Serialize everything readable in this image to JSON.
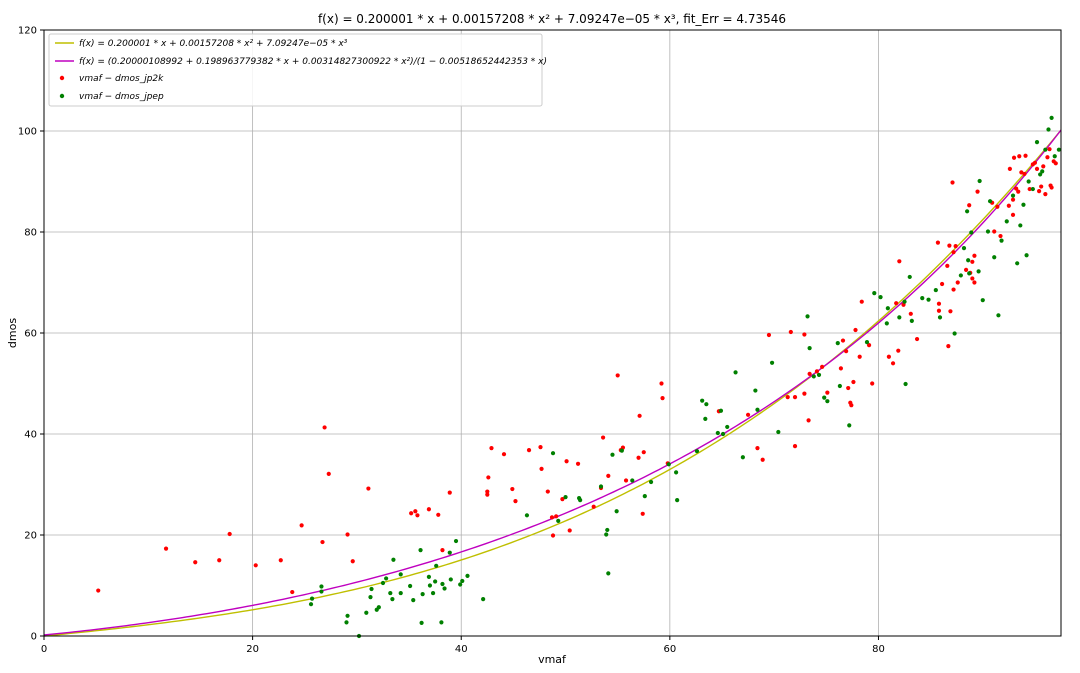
{
  "chart_data": {
    "type": "scatter",
    "title": "f(x) = 0.200001 * x + 0.00157208 * x² + 7.09247e−05 * x³,    fit_Err = 4.73546",
    "xlabel": "vmaf",
    "ylabel": "dmos",
    "xlim": [
      0,
      97.5
    ],
    "ylim": [
      0,
      120
    ],
    "x_ticks": [
      0,
      20,
      40,
      60,
      80
    ],
    "y_ticks": [
      0,
      20,
      40,
      60,
      80,
      100,
      120
    ],
    "grid": true,
    "legend_position": "top-left",
    "fit_lines": [
      {
        "name": "f(x) = 0.200001 * x + 0.00157208 * x² + 7.09247e−05 * x³",
        "color": "#bfbf00",
        "model": "cubic",
        "coefficients": [
          0.200001,
          0.00157208,
          7.09247e-05
        ]
      },
      {
        "name": "f(x) = (0.20000108992 + 0.198963779382 * x + 0.00314827300922 * x²)/(1 − 0.00518652442353 * x)",
        "color": "#bf00bf",
        "model": "rational",
        "coefficients": [
          0.20000108992,
          0.198963779382,
          0.00314827300922,
          0.00518652442353
        ]
      }
    ],
    "series": [
      {
        "name": "vmaf − dmos_jp2k",
        "color": "#ff0000",
        "points": [
          [
            5.2,
            9
          ],
          [
            11.7,
            17.3
          ],
          [
            14.5,
            14.6
          ],
          [
            16.8,
            15
          ],
          [
            17.8,
            20.2
          ],
          [
            20.3,
            14
          ],
          [
            22.7,
            15
          ],
          [
            23.8,
            8.7
          ],
          [
            24.7,
            21.9
          ],
          [
            26.7,
            18.6
          ],
          [
            26.9,
            41.3
          ],
          [
            27.3,
            32.1
          ],
          [
            29.1,
            20.1
          ],
          [
            29.6,
            14.8
          ],
          [
            31.1,
            29.2
          ],
          [
            35.2,
            24.3
          ],
          [
            35.6,
            24.7
          ],
          [
            35.8,
            23.9
          ],
          [
            36.9,
            25.1
          ],
          [
            37.8,
            24
          ],
          [
            38.2,
            17
          ],
          [
            38.9,
            28.4
          ],
          [
            42.5,
            28.6
          ],
          [
            42.5,
            28
          ],
          [
            42.6,
            31.4
          ],
          [
            42.9,
            37.2
          ],
          [
            44.1,
            36
          ],
          [
            44.9,
            29.1
          ],
          [
            45.2,
            26.7
          ],
          [
            46.5,
            36.8
          ],
          [
            47.6,
            37.4
          ],
          [
            47.7,
            33.1
          ],
          [
            48.3,
            28.6
          ],
          [
            48.7,
            23.5
          ],
          [
            48.8,
            19.9
          ],
          [
            49.1,
            23.7
          ],
          [
            49.7,
            27.1
          ],
          [
            50.1,
            34.6
          ],
          [
            50.4,
            20.9
          ],
          [
            51.2,
            34.1
          ],
          [
            52.7,
            25.6
          ],
          [
            53.4,
            29.3
          ],
          [
            53.6,
            39.3
          ],
          [
            54.1,
            31.7
          ],
          [
            55,
            51.6
          ],
          [
            55.3,
            36.8
          ],
          [
            55.5,
            37.3
          ],
          [
            55.8,
            30.8
          ],
          [
            57,
            35.3
          ],
          [
            57.1,
            43.6
          ],
          [
            57.4,
            24.2
          ],
          [
            57.5,
            36.4
          ],
          [
            59.2,
            50
          ],
          [
            59.3,
            47.1
          ],
          [
            59.8,
            34.2
          ],
          [
            64.7,
            44.5
          ],
          [
            67.5,
            43.8
          ],
          [
            68.4,
            37.2
          ],
          [
            68.9,
            34.9
          ],
          [
            69.5,
            59.6
          ],
          [
            71.3,
            47.3
          ],
          [
            71.6,
            60.2
          ],
          [
            72,
            47.3
          ],
          [
            72,
            37.6
          ],
          [
            72.9,
            59.7
          ],
          [
            72.9,
            48
          ],
          [
            73.3,
            42.7
          ],
          [
            73.4,
            51.9
          ],
          [
            74.1,
            52.4
          ],
          [
            74.6,
            53.3
          ],
          [
            75.1,
            48.2
          ],
          [
            76.4,
            53
          ],
          [
            76.6,
            58.5
          ],
          [
            76.9,
            56.4
          ],
          [
            77.1,
            49.1
          ],
          [
            77.3,
            46.2
          ],
          [
            77.4,
            45.7
          ],
          [
            77.6,
            50.3
          ],
          [
            77.8,
            60.6
          ],
          [
            78.2,
            55.3
          ],
          [
            78.4,
            66.2
          ],
          [
            79.1,
            57.6
          ],
          [
            79.4,
            50
          ],
          [
            81,
            55.3
          ],
          [
            81.4,
            54
          ],
          [
            81.7,
            65.9
          ],
          [
            81.9,
            56.5
          ],
          [
            82,
            74.2
          ],
          [
            82.4,
            65.6
          ],
          [
            83.1,
            63.8
          ],
          [
            83.7,
            58.8
          ],
          [
            85.7,
            77.9
          ],
          [
            85.8,
            65.8
          ],
          [
            85.8,
            64.4
          ],
          [
            86.1,
            69.7
          ],
          [
            86.6,
            73.3
          ],
          [
            86.7,
            57.4
          ],
          [
            86.8,
            77.3
          ],
          [
            86.9,
            64.3
          ],
          [
            87.1,
            89.8
          ],
          [
            87.2,
            76
          ],
          [
            87.2,
            68.6
          ],
          [
            87.4,
            77.2
          ],
          [
            87.6,
            70
          ],
          [
            88.4,
            72.5
          ],
          [
            88.7,
            85.3
          ],
          [
            88.8,
            71.9
          ],
          [
            89,
            74.1
          ],
          [
            89,
            70.8
          ],
          [
            89.2,
            75.3
          ],
          [
            89.2,
            70
          ],
          [
            89.5,
            88
          ],
          [
            90.9,
            85.8
          ],
          [
            91.1,
            80.1
          ],
          [
            91.4,
            85
          ],
          [
            91.7,
            79.2
          ],
          [
            92.5,
            85.2
          ],
          [
            92.6,
            92.5
          ],
          [
            92.9,
            86.4
          ],
          [
            92.9,
            83.4
          ],
          [
            93,
            94.7
          ],
          [
            93.2,
            88.6
          ],
          [
            93.4,
            88
          ],
          [
            93.5,
            95
          ],
          [
            93.7,
            91.8
          ],
          [
            94,
            91.5
          ],
          [
            94.1,
            95.1
          ],
          [
            94.5,
            88.5
          ],
          [
            94.8,
            93.4
          ],
          [
            95,
            93.7
          ],
          [
            95.2,
            92.5
          ],
          [
            95.4,
            88.1
          ],
          [
            95.6,
            89
          ],
          [
            95.8,
            93
          ],
          [
            96,
            87.5
          ],
          [
            96.2,
            94.8
          ],
          [
            96.4,
            96.4
          ],
          [
            96.5,
            89.2
          ],
          [
            96.6,
            88.8
          ],
          [
            96.8,
            94
          ],
          [
            97,
            93.6
          ]
        ]
      },
      {
        "name": "vmaf − dmos_jpep",
        "color": "#008000",
        "points": [
          [
            25.6,
            6.3
          ],
          [
            25.7,
            7.4
          ],
          [
            26.6,
            8.8
          ],
          [
            26.6,
            9.8
          ],
          [
            29,
            2.7
          ],
          [
            29.1,
            4
          ],
          [
            30.2,
            0
          ],
          [
            30.9,
            4.6
          ],
          [
            31.3,
            7.7
          ],
          [
            31.4,
            9.3
          ],
          [
            31.9,
            5.2
          ],
          [
            32.1,
            5.7
          ],
          [
            32.5,
            10.5
          ],
          [
            32.8,
            11.4
          ],
          [
            33.2,
            8.5
          ],
          [
            33.4,
            7.3
          ],
          [
            33.5,
            15.1
          ],
          [
            34.2,
            8.5
          ],
          [
            34.2,
            12.2
          ],
          [
            35.1,
            9.9
          ],
          [
            35.4,
            7.1
          ],
          [
            36.1,
            17
          ],
          [
            36.2,
            2.6
          ],
          [
            36.3,
            8.3
          ],
          [
            36.9,
            11.7
          ],
          [
            37,
            10
          ],
          [
            37.3,
            8.5
          ],
          [
            37.5,
            10.8
          ],
          [
            37.6,
            13.9
          ],
          [
            38.1,
            2.7
          ],
          [
            38.2,
            10.3
          ],
          [
            38.4,
            9.4
          ],
          [
            38.9,
            16.5
          ],
          [
            39,
            11.2
          ],
          [
            39.5,
            18.8
          ],
          [
            39.9,
            10.2
          ],
          [
            40.1,
            10.9
          ],
          [
            40.6,
            11.9
          ],
          [
            42.1,
            7.3
          ],
          [
            46.3,
            23.9
          ],
          [
            48.8,
            36.2
          ],
          [
            49.3,
            22.8
          ],
          [
            50,
            27.5
          ],
          [
            51.3,
            27.3
          ],
          [
            51.4,
            26.9
          ],
          [
            53.4,
            29.6
          ],
          [
            53.9,
            20.1
          ],
          [
            54,
            21
          ],
          [
            54.1,
            12.4
          ],
          [
            54.5,
            35.9
          ],
          [
            54.9,
            24.7
          ],
          [
            55.4,
            36.7
          ],
          [
            56.4,
            30.8
          ],
          [
            57.6,
            27.7
          ],
          [
            58.2,
            30.5
          ],
          [
            59.9,
            34
          ],
          [
            60.6,
            32.4
          ],
          [
            60.7,
            26.9
          ],
          [
            62.6,
            36.6
          ],
          [
            63.1,
            46.6
          ],
          [
            63.4,
            43
          ],
          [
            63.5,
            45.9
          ],
          [
            64.6,
            40.2
          ],
          [
            64.9,
            44.6
          ],
          [
            65.1,
            40
          ],
          [
            65.5,
            41.4
          ],
          [
            66.3,
            52.2
          ],
          [
            67,
            35.4
          ],
          [
            68.2,
            48.6
          ],
          [
            68.4,
            44.8
          ],
          [
            69.8,
            54.1
          ],
          [
            70.4,
            40.4
          ],
          [
            73.2,
            63.3
          ],
          [
            73.4,
            57
          ],
          [
            73.8,
            51.4
          ],
          [
            74.3,
            51.7
          ],
          [
            74.8,
            47.2
          ],
          [
            75.1,
            46.5
          ],
          [
            76.1,
            58
          ],
          [
            76.3,
            49.5
          ],
          [
            77.2,
            41.7
          ],
          [
            78.9,
            58.2
          ],
          [
            79.6,
            67.9
          ],
          [
            80.2,
            67.1
          ],
          [
            80.8,
            61.9
          ],
          [
            80.9,
            64.9
          ],
          [
            82,
            63.1
          ],
          [
            82.5,
            66.2
          ],
          [
            82.6,
            49.9
          ],
          [
            83,
            71.1
          ],
          [
            83.2,
            62.4
          ],
          [
            84.2,
            66.9
          ],
          [
            84.8,
            66.6
          ],
          [
            85.5,
            68.5
          ],
          [
            85.9,
            63.1
          ],
          [
            87.3,
            59.9
          ],
          [
            87.9,
            71.4
          ],
          [
            88.2,
            76.8
          ],
          [
            88.5,
            84.1
          ],
          [
            88.6,
            74.4
          ],
          [
            88.7,
            71.8
          ],
          [
            88.9,
            79.9
          ],
          [
            89.6,
            72.2
          ],
          [
            89.7,
            90.1
          ],
          [
            90,
            66.5
          ],
          [
            90.5,
            80.1
          ],
          [
            90.7,
            86.1
          ],
          [
            91.1,
            75
          ],
          [
            91.5,
            63.5
          ],
          [
            91.8,
            78.3
          ],
          [
            92.3,
            82.1
          ],
          [
            92.9,
            87.2
          ],
          [
            93.3,
            73.8
          ],
          [
            93.6,
            81.3
          ],
          [
            93.9,
            85.4
          ],
          [
            94.2,
            75.4
          ],
          [
            94.4,
            90
          ],
          [
            94.8,
            88.5
          ],
          [
            95.2,
            97.8
          ],
          [
            95.5,
            91.4
          ],
          [
            95.7,
            92
          ],
          [
            96,
            96.3
          ],
          [
            96.3,
            100.3
          ],
          [
            96.6,
            102.6
          ],
          [
            96.9,
            95
          ],
          [
            97.3,
            96.3
          ]
        ]
      }
    ]
  },
  "legend_labels": {
    "fit_cubic": "f(x) = 0.200001 * x + 0.00157208 * x² + 7.09247e−05 * x³",
    "fit_rational": "f(x) = (0.20000108992 + 0.198963779382 * x + 0.00314827300922 * x²)/(1 − 0.00518652442353 * x)",
    "series_jp2k": "vmaf − dmos_jp2k",
    "series_jpep": "vmaf − dmos_jpep"
  }
}
